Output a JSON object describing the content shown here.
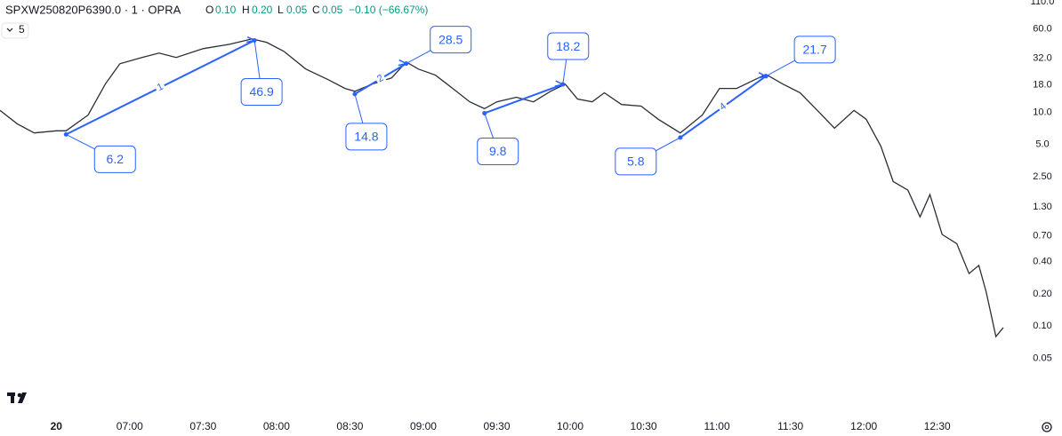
{
  "header": {
    "symbol": "SPXW250820P6390.0 · 1 · OPRA",
    "open_label": "O",
    "open": "0.10",
    "high_label": "H",
    "high": "0.20",
    "low_label": "L",
    "low": "0.05",
    "close_label": "C",
    "close": "0.05",
    "change": "−0.10 (−66.67%)",
    "interval_chip": "5"
  },
  "chart_data": {
    "type": "line",
    "color": "#2a2e39",
    "log_scale": true,
    "xlim": [
      367,
      785
    ],
    "ylim": [
      0.017,
      112
    ],
    "xticks": [
      {
        "value": 390,
        "label": "20"
      },
      {
        "value": 420,
        "label": "07:00"
      },
      {
        "value": 450,
        "label": "07:30"
      },
      {
        "value": 480,
        "label": "08:00"
      },
      {
        "value": 510,
        "label": "08:30"
      },
      {
        "value": 540,
        "label": "09:00"
      },
      {
        "value": 570,
        "label": "09:30"
      },
      {
        "value": 600,
        "label": "10:00"
      },
      {
        "value": 630,
        "label": "10:30"
      },
      {
        "value": 660,
        "label": "11:00"
      },
      {
        "value": 690,
        "label": "11:30"
      },
      {
        "value": 720,
        "label": "12:00"
      },
      {
        "value": 750,
        "label": "12:30"
      }
    ],
    "yticks": [
      {
        "value": 110,
        "label": "110.0"
      },
      {
        "value": 60,
        "label": "60.0"
      },
      {
        "value": 32,
        "label": "32.0"
      },
      {
        "value": 18,
        "label": "18.0"
      },
      {
        "value": 10,
        "label": "10.0"
      },
      {
        "value": 5,
        "label": "5.0"
      },
      {
        "value": 2.5,
        "label": "2.50"
      },
      {
        "value": 1.3,
        "label": "1.30"
      },
      {
        "value": 0.7,
        "label": "0.70"
      },
      {
        "value": 0.4,
        "label": "0.40"
      },
      {
        "value": 0.2,
        "label": "0.20"
      },
      {
        "value": 0.1,
        "label": "0.10"
      },
      0.05
    ],
    "x": [
      367,
      374,
      381,
      390,
      394,
      403,
      410,
      416,
      425,
      432,
      439,
      450,
      461,
      470,
      476,
      483,
      492,
      501,
      508,
      512,
      519,
      527,
      533,
      538,
      545,
      552,
      559,
      565,
      570,
      578,
      585,
      592,
      598,
      603,
      609,
      614,
      621,
      629,
      636,
      645,
      654,
      661,
      668,
      674,
      680,
      687,
      694,
      701,
      708,
      716,
      721,
      727,
      732,
      738,
      743,
      747,
      752,
      758,
      763,
      767,
      770,
      774,
      777
    ],
    "values": [
      10.4,
      7.8,
      6.4,
      6.7,
      6.7,
      9.4,
      18.3,
      28.4,
      32.5,
      35.7,
      32.5,
      39.3,
      43.2,
      48.5,
      44.9,
      37.1,
      25.3,
      20.2,
      16.7,
      15.7,
      18.3,
      20.9,
      29.5,
      25.3,
      22.2,
      16.7,
      12.5,
      10.8,
      12.5,
      13.8,
      12.5,
      15.7,
      18.3,
      13.3,
      12.5,
      15.2,
      11.8,
      11.4,
      8.6,
      6.4,
      9.4,
      16.7,
      16.7,
      19.4,
      22.6,
      18.3,
      15.2,
      10.4,
      7.1,
      10.4,
      8.6,
      4.8,
      2.25,
      1.87,
      1.05,
      1.7,
      0.72,
      0.59,
      0.31,
      0.37,
      0.21,
      0.08,
      0.097
    ],
    "annotations": [
      {
        "x": 394,
        "value": 6.2
      },
      {
        "x": 471,
        "value": 46.9
      },
      {
        "x": 512,
        "value": 14.8
      },
      {
        "x": 533,
        "value": 28.5
      },
      {
        "x": 565,
        "value": 9.8
      },
      {
        "x": 597,
        "value": 18.2
      },
      {
        "x": 645,
        "value": 5.8
      },
      {
        "x": 680,
        "value": 21.7
      }
    ],
    "leg_labels": [
      "1",
      "2",
      null,
      "4"
    ],
    "annotation_color": "#2962ff"
  }
}
